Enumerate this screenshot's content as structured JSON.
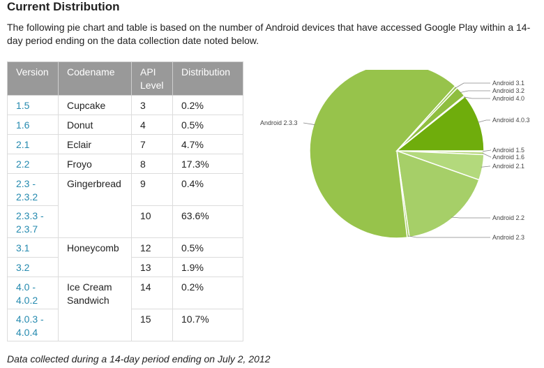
{
  "title": "Current Distribution",
  "intro": "The following pie chart and table is based on the number of Android devices that have accessed Google Play within a 14-day period ending on the data collection date noted below.",
  "table": {
    "headers": [
      "Version",
      "Codename",
      "API Level",
      "Distribution"
    ],
    "rows": [
      {
        "version": "1.5",
        "codename": "Cupcake",
        "api": "3",
        "dist": "0.2%"
      },
      {
        "version": "1.6",
        "codename": "Donut",
        "api": "4",
        "dist": "0.5%"
      },
      {
        "version": "2.1",
        "codename": "Eclair",
        "api": "7",
        "dist": "4.7%"
      },
      {
        "version": "2.2",
        "codename": "Froyo",
        "api": "8",
        "dist": "17.3%"
      },
      {
        "version": "2.3 - 2.3.2",
        "codename": "Gingerbread",
        "api": "9",
        "dist": "0.4%"
      },
      {
        "version": "2.3.3 - 2.3.7",
        "codename": "",
        "api": "10",
        "dist": "63.6%"
      },
      {
        "version": "3.1",
        "codename": "Honeycomb",
        "api": "12",
        "dist": "0.5%"
      },
      {
        "version": "3.2",
        "codename": "",
        "api": "13",
        "dist": "1.9%"
      },
      {
        "version": "4.0 - 4.0.2",
        "codename": "Ice Cream Sandwich",
        "api": "14",
        "dist": "0.2%"
      },
      {
        "version": "4.0.3 - 4.0.4",
        "codename": "",
        "api": "15",
        "dist": "10.7%"
      }
    ]
  },
  "footer": "Data collected during a 14-day period ending on July 2, 2012",
  "chart_data": {
    "type": "pie",
    "categories": [
      "Android 1.5",
      "Android 1.6",
      "Android 2.1",
      "Android 2.2",
      "Android 2.3",
      "Android 2.3.3",
      "Android 3.1",
      "Android 3.2",
      "Android 4.0",
      "Android 4.0.3"
    ],
    "values": [
      0.2,
      0.5,
      4.7,
      17.3,
      0.4,
      63.6,
      0.5,
      1.9,
      0.2,
      10.7
    ],
    "colors": [
      "#aed26c",
      "#aed26c",
      "#b3d97c",
      "#a6cf68",
      "#9fca58",
      "#97c34b",
      "#9fca58",
      "#8fbe3f",
      "#aed26c",
      "#6fad0c"
    ],
    "legend": "none (leader-line labels)"
  }
}
